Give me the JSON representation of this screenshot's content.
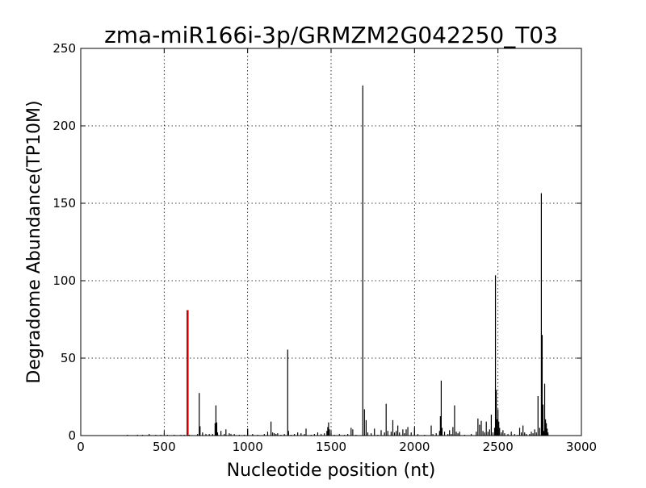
{
  "chart_data": {
    "type": "bar",
    "title": "zma-miR166i-3p/GRMZM2G042250_T03",
    "xlabel": "Nucleotide position (nt)",
    "ylabel": "Degradome Abundance(TP10M)",
    "xlim": [
      0,
      3000
    ],
    "ylim": [
      0,
      250
    ],
    "xticks": [
      0,
      500,
      1000,
      1500,
      2000,
      2500,
      3000
    ],
    "yticks": [
      0,
      50,
      100,
      150,
      200,
      250
    ],
    "grid": true,
    "colors": {
      "bars": "#000000",
      "highlight": "#cc0000",
      "grid": "#000000"
    },
    "highlight": {
      "x": 640,
      "y": 81
    },
    "points": [
      [
        280,
        0.5
      ],
      [
        340,
        0.5
      ],
      [
        370,
        0.5
      ],
      [
        410,
        1.0
      ],
      [
        450,
        0.5
      ],
      [
        480,
        0.5
      ],
      [
        520,
        0.5
      ],
      [
        560,
        0.5
      ],
      [
        600,
        0.5
      ],
      [
        620,
        0.5
      ],
      [
        650,
        0.5
      ],
      [
        700,
        1.0
      ],
      [
        710,
        27.5
      ],
      [
        715,
        6.0
      ],
      [
        730,
        2.0
      ],
      [
        750,
        1.0
      ],
      [
        770,
        1.0
      ],
      [
        790,
        1.0
      ],
      [
        805,
        8.0
      ],
      [
        810,
        19.5
      ],
      [
        815,
        8.5
      ],
      [
        820,
        2.0
      ],
      [
        840,
        3.0
      ],
      [
        860,
        1.0
      ],
      [
        870,
        4.0
      ],
      [
        890,
        1.5
      ],
      [
        900,
        1.0
      ],
      [
        920,
        1.0
      ],
      [
        950,
        0.5
      ],
      [
        980,
        0.5
      ],
      [
        1000,
        4.5
      ],
      [
        1030,
        1.0
      ],
      [
        1060,
        0.5
      ],
      [
        1100,
        1.0
      ],
      [
        1120,
        2.5
      ],
      [
        1140,
        9.0
      ],
      [
        1150,
        2.0
      ],
      [
        1160,
        1.5
      ],
      [
        1170,
        1.0
      ],
      [
        1180,
        1.5
      ],
      [
        1200,
        0.5
      ],
      [
        1220,
        1.0
      ],
      [
        1240,
        55.5
      ],
      [
        1245,
        3.0
      ],
      [
        1260,
        0.5
      ],
      [
        1280,
        1.0
      ],
      [
        1300,
        2.0
      ],
      [
        1320,
        1.5
      ],
      [
        1340,
        1.0
      ],
      [
        1350,
        4.5
      ],
      [
        1380,
        0.5
      ],
      [
        1400,
        1.0
      ],
      [
        1420,
        2.0
      ],
      [
        1440,
        1.0
      ],
      [
        1460,
        1.5
      ],
      [
        1475,
        3.0
      ],
      [
        1480,
        5.5
      ],
      [
        1485,
        8.5
      ],
      [
        1490,
        4.0
      ],
      [
        1500,
        1.5
      ],
      [
        1520,
        0.5
      ],
      [
        1550,
        1.0
      ],
      [
        1580,
        0.5
      ],
      [
        1600,
        1.0
      ],
      [
        1620,
        5.0
      ],
      [
        1630,
        4.0
      ],
      [
        1650,
        0.5
      ],
      [
        1690,
        226.0
      ],
      [
        1700,
        17.0
      ],
      [
        1710,
        10.0
      ],
      [
        1720,
        2.0
      ],
      [
        1740,
        1.5
      ],
      [
        1760,
        4.5
      ],
      [
        1780,
        0.5
      ],
      [
        1800,
        3.5
      ],
      [
        1820,
        2.0
      ],
      [
        1830,
        20.5
      ],
      [
        1840,
        3.0
      ],
      [
        1860,
        2.5
      ],
      [
        1870,
        10.0
      ],
      [
        1880,
        2.0
      ],
      [
        1890,
        3.0
      ],
      [
        1900,
        6.5
      ],
      [
        1910,
        2.0
      ],
      [
        1930,
        4.0
      ],
      [
        1940,
        1.5
      ],
      [
        1950,
        4.0
      ],
      [
        1960,
        5.5
      ],
      [
        1980,
        2.0
      ],
      [
        2000,
        5.5
      ],
      [
        2020,
        1.0
      ],
      [
        2060,
        0.5
      ],
      [
        2100,
        6.5
      ],
      [
        2110,
        1.0
      ],
      [
        2130,
        1.5
      ],
      [
        2150,
        3.0
      ],
      [
        2155,
        12.5
      ],
      [
        2160,
        35.5
      ],
      [
        2165,
        5.0
      ],
      [
        2180,
        2.5
      ],
      [
        2200,
        1.0
      ],
      [
        2210,
        3.5
      ],
      [
        2220,
        1.0
      ],
      [
        2230,
        5.5
      ],
      [
        2240,
        19.5
      ],
      [
        2250,
        2.5
      ],
      [
        2260,
        1.5
      ],
      [
        2270,
        2.5
      ],
      [
        2300,
        0.5
      ],
      [
        2340,
        1.0
      ],
      [
        2370,
        2.5
      ],
      [
        2380,
        11.0
      ],
      [
        2390,
        7.0
      ],
      [
        2400,
        9.5
      ],
      [
        2410,
        3.0
      ],
      [
        2420,
        2.0
      ],
      [
        2430,
        9.0
      ],
      [
        2440,
        2.5
      ],
      [
        2450,
        4.0
      ],
      [
        2460,
        13.5
      ],
      [
        2470,
        2.0
      ],
      [
        2480,
        5.0
      ],
      [
        2485,
        103.5
      ],
      [
        2490,
        29.5
      ],
      [
        2495,
        10.5
      ],
      [
        2500,
        17.0
      ],
      [
        2505,
        9.0
      ],
      [
        2510,
        5.0
      ],
      [
        2520,
        2.0
      ],
      [
        2530,
        3.5
      ],
      [
        2540,
        1.5
      ],
      [
        2560,
        1.0
      ],
      [
        2580,
        2.5
      ],
      [
        2600,
        1.0
      ],
      [
        2620,
        0.5
      ],
      [
        2630,
        5.0
      ],
      [
        2640,
        2.0
      ],
      [
        2650,
        6.5
      ],
      [
        2660,
        2.0
      ],
      [
        2670,
        1.0
      ],
      [
        2690,
        1.0
      ],
      [
        2700,
        2.5
      ],
      [
        2710,
        1.5
      ],
      [
        2720,
        4.0
      ],
      [
        2730,
        2.0
      ],
      [
        2740,
        25.5
      ],
      [
        2750,
        5.0
      ],
      [
        2760,
        156.5
      ],
      [
        2765,
        65.0
      ],
      [
        2770,
        20.0
      ],
      [
        2775,
        3.0
      ],
      [
        2780,
        33.5
      ],
      [
        2785,
        10.5
      ],
      [
        2790,
        8.0
      ],
      [
        2795,
        4.5
      ],
      [
        2800,
        2.0
      ]
    ]
  }
}
